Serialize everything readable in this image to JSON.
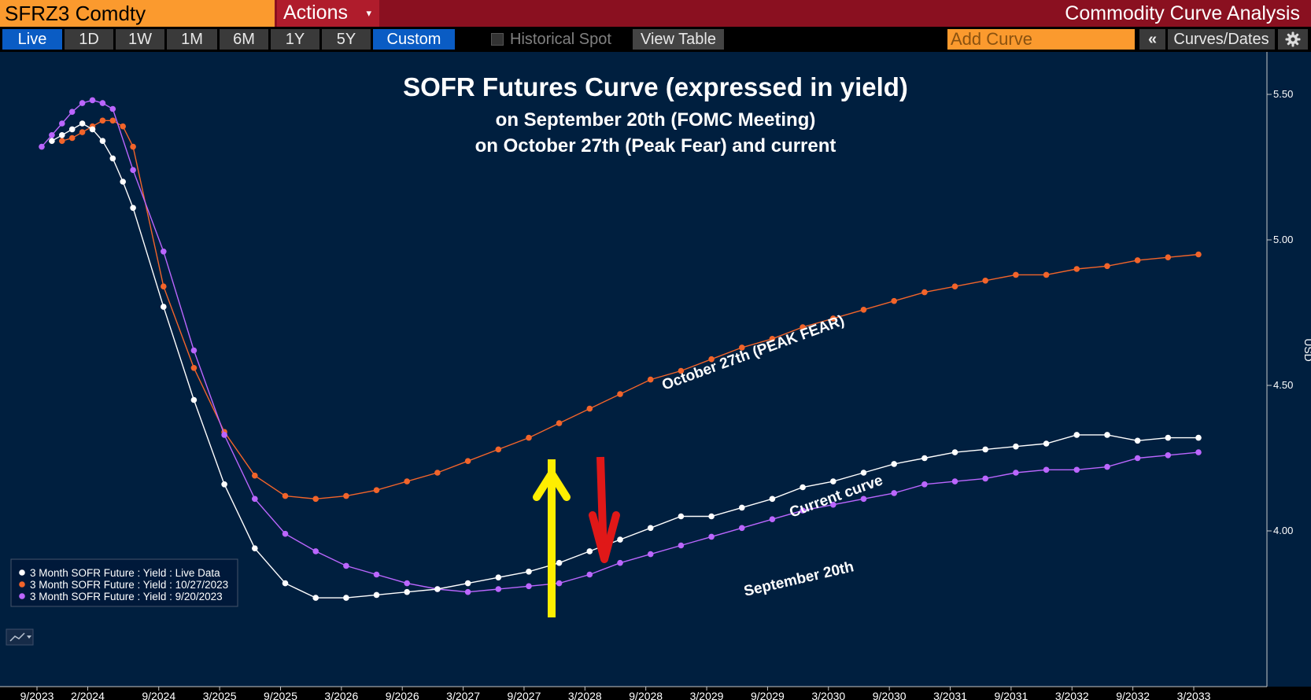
{
  "header": {
    "ticker": "SFRZ3 Comdty",
    "actions_label": "Actions",
    "actions_caret": "▾",
    "app_title": "Commodity Curve Analysis"
  },
  "toolbar": {
    "ranges": [
      "Live",
      "1D",
      "1W",
      "1M",
      "6M",
      "1Y",
      "5Y",
      "Custom"
    ],
    "selected_ranges": [
      "Live",
      "Custom"
    ],
    "historical_spot_label": "Historical Spot",
    "historical_spot_checked": false,
    "view_table_label": "View Table",
    "add_curve_placeholder": "Add Curve",
    "collapse_label": "«",
    "curves_dates_label": "Curves/Dates",
    "settings_icon": "gear-icon"
  },
  "colors": {
    "background": "#001f3f",
    "live": "#ffffff",
    "oct27": "#f2642a",
    "sep20": "#bb66ff",
    "up_arrow": "#ffee00",
    "down_arrow": "#e01818"
  },
  "chart_data": {
    "type": "line",
    "title": "SOFR Futures Curve (expressed in yield)",
    "subtitle_lines": [
      "on September 20th (FOMC Meeting)",
      "on October 27th (Peak Fear) and current"
    ],
    "xlabel": "",
    "ylabel": "USD",
    "x_ticks": [
      "9/2023",
      "2/2024",
      "9/2024",
      "3/2025",
      "9/2025",
      "3/2026",
      "9/2026",
      "3/2027",
      "9/2027",
      "3/2028",
      "9/2028",
      "3/2029",
      "9/2029",
      "3/2030",
      "9/2030",
      "3/2031",
      "9/2031",
      "3/2032",
      "9/2032",
      "3/2033"
    ],
    "y_ticks": [
      "5.50",
      "5.00",
      "4.50",
      "4.00"
    ],
    "ylim": [
      3.63,
      5.63
    ],
    "grid": false,
    "legend_position": "bottom-left",
    "annotations": [
      "October 27th (PEAK FEAR)",
      "Current curve",
      "September 20th"
    ],
    "series": [
      {
        "name": "3 Month SOFR Future : Yield : Live Data",
        "x": [
          "2023-10-15",
          "2023-11-15",
          "2023-12-15",
          "2024-01-15",
          "2024-02-15",
          "2024-03-15",
          "2024-04-15",
          "2024-05-15",
          "2024-06-15",
          "2024-09-15",
          "2024-12-15",
          "2025-03-15",
          "2025-06-15",
          "2025-09-15",
          "2025-12-15",
          "2026-03-15",
          "2026-06-15",
          "2026-09-15",
          "2026-12-15",
          "2027-03-15",
          "2027-06-15",
          "2027-09-15",
          "2027-12-15",
          "2028-03-15",
          "2028-06-15",
          "2028-09-15",
          "2028-12-15",
          "2029-03-15",
          "2029-06-15",
          "2029-09-15",
          "2029-12-15",
          "2030-03-15",
          "2030-06-15",
          "2030-09-15",
          "2030-12-15",
          "2031-03-15",
          "2031-06-15",
          "2031-09-15",
          "2031-12-15",
          "2032-03-15",
          "2032-06-15",
          "2032-09-15",
          "2032-12-15",
          "2033-03-15"
        ],
        "y": [
          5.34,
          5.36,
          5.38,
          5.4,
          5.38,
          5.34,
          5.28,
          5.2,
          5.11,
          4.77,
          4.45,
          4.16,
          3.94,
          3.82,
          3.77,
          3.77,
          3.78,
          3.79,
          3.8,
          3.82,
          3.84,
          3.86,
          3.89,
          3.93,
          3.97,
          4.01,
          4.05,
          4.05,
          4.08,
          4.11,
          4.15,
          4.17,
          4.2,
          4.23,
          4.25,
          4.27,
          4.28,
          4.29,
          4.3,
          4.33,
          4.33,
          4.31,
          4.32,
          4.32
        ]
      },
      {
        "name": "3 Month SOFR Future : Yield : 10/27/2023",
        "x": [
          "2023-11-15",
          "2023-12-15",
          "2024-01-15",
          "2024-02-15",
          "2024-03-15",
          "2024-04-15",
          "2024-05-15",
          "2024-06-15",
          "2024-09-15",
          "2024-12-15",
          "2025-03-15",
          "2025-06-15",
          "2025-09-15",
          "2025-12-15",
          "2026-03-15",
          "2026-06-15",
          "2026-09-15",
          "2026-12-15",
          "2027-03-15",
          "2027-06-15",
          "2027-09-15",
          "2027-12-15",
          "2028-03-15",
          "2028-06-15",
          "2028-09-15",
          "2028-12-15",
          "2029-03-15",
          "2029-06-15",
          "2029-09-15",
          "2029-12-15",
          "2030-03-15",
          "2030-06-15",
          "2030-09-15",
          "2030-12-15",
          "2031-03-15",
          "2031-06-15",
          "2031-09-15",
          "2031-12-15",
          "2032-03-15",
          "2032-06-15",
          "2032-09-15",
          "2032-12-15",
          "2033-03-15"
        ],
        "y": [
          5.34,
          5.35,
          5.37,
          5.39,
          5.41,
          5.41,
          5.39,
          5.32,
          4.84,
          4.56,
          4.34,
          4.19,
          4.12,
          4.11,
          4.12,
          4.14,
          4.17,
          4.2,
          4.24,
          4.28,
          4.32,
          4.37,
          4.42,
          4.47,
          4.52,
          4.55,
          4.59,
          4.63,
          4.66,
          4.7,
          4.73,
          4.76,
          4.79,
          4.82,
          4.84,
          4.86,
          4.88,
          4.88,
          4.9,
          4.91,
          4.93,
          4.94,
          4.95
        ]
      },
      {
        "name": "3 Month SOFR Future : Yield : 9/20/2023",
        "x": [
          "2023-09-15",
          "2023-10-15",
          "2023-11-15",
          "2023-12-15",
          "2024-01-15",
          "2024-02-15",
          "2024-03-15",
          "2024-04-15",
          "2024-06-15",
          "2024-09-15",
          "2024-12-15",
          "2025-03-15",
          "2025-06-15",
          "2025-09-15",
          "2025-12-15",
          "2026-03-15",
          "2026-06-15",
          "2026-09-15",
          "2026-12-15",
          "2027-03-15",
          "2027-06-15",
          "2027-09-15",
          "2027-12-15",
          "2028-03-15",
          "2028-06-15",
          "2028-09-15",
          "2028-12-15",
          "2029-03-15",
          "2029-06-15",
          "2029-09-15",
          "2029-12-15",
          "2030-03-15",
          "2030-06-15",
          "2030-09-15",
          "2030-12-15",
          "2031-03-15",
          "2031-06-15",
          "2031-09-15",
          "2031-12-15",
          "2032-03-15",
          "2032-06-15",
          "2032-09-15",
          "2032-12-15",
          "2033-03-15"
        ],
        "y": [
          5.32,
          5.36,
          5.4,
          5.44,
          5.47,
          5.48,
          5.47,
          5.45,
          5.24,
          4.96,
          4.62,
          4.33,
          4.11,
          3.99,
          3.93,
          3.88,
          3.85,
          3.82,
          3.8,
          3.79,
          3.8,
          3.81,
          3.82,
          3.85,
          3.89,
          3.92,
          3.95,
          3.98,
          4.01,
          4.04,
          4.07,
          4.09,
          4.11,
          4.13,
          4.16,
          4.17,
          4.18,
          4.2,
          4.21,
          4.21,
          4.22,
          4.25,
          4.26,
          4.27
        ]
      }
    ]
  }
}
